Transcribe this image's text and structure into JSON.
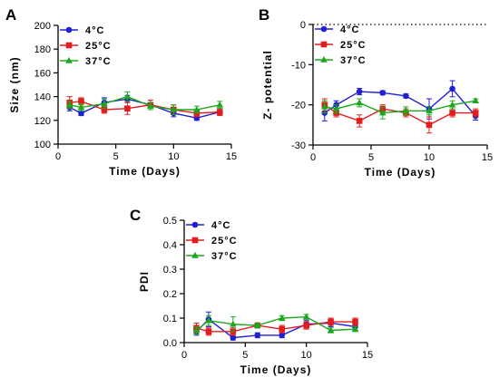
{
  "chart_data": [
    {
      "panel": "A",
      "type": "line",
      "xlabel": "Time (Days)",
      "ylabel": "Size (nm)",
      "xlim": [
        0,
        15
      ],
      "ylim": [
        100,
        200
      ],
      "xticks": [
        0,
        5,
        10,
        15
      ],
      "yticks": [
        100,
        120,
        140,
        160,
        180,
        200
      ],
      "legend": "top-left",
      "series": [
        {
          "name": "4°C",
          "color": "#1f1fd6",
          "marker": "circle",
          "x": [
            1,
            2,
            4,
            6,
            8,
            10,
            12,
            14
          ],
          "y": [
            131,
            126,
            135,
            138,
            133,
            126,
            122,
            127
          ],
          "err": [
            3,
            2,
            4,
            3,
            2,
            3,
            2,
            2
          ]
        },
        {
          "name": "25°C",
          "color": "#e31c1c",
          "marker": "square",
          "x": [
            1,
            2,
            4,
            6,
            8,
            10,
            12,
            14
          ],
          "y": [
            135,
            136,
            129,
            130,
            133,
            129,
            126,
            127
          ],
          "err": [
            5,
            3,
            3,
            5,
            4,
            4,
            3,
            3
          ]
        },
        {
          "name": "37°C",
          "color": "#1ca81c",
          "marker": "triangle",
          "x": [
            1,
            2,
            4,
            6,
            8,
            10,
            12,
            14
          ],
          "y": [
            133,
            131,
            134,
            140,
            132,
            129,
            129,
            133
          ],
          "err": [
            3,
            3,
            4,
            4,
            3,
            4,
            3,
            3
          ]
        }
      ]
    },
    {
      "panel": "B",
      "type": "line",
      "xlabel": "Time (Days)",
      "ylabel": "Z- potential",
      "xlim": [
        0,
        15
      ],
      "ylim": [
        -30,
        0
      ],
      "xticks": [
        0,
        5,
        10,
        15
      ],
      "yticks": [
        -30,
        -20,
        -10,
        0
      ],
      "zero_line": "dotted",
      "legend": "top-left",
      "series": [
        {
          "name": "4°C",
          "color": "#1f1fd6",
          "marker": "circle",
          "x": [
            1,
            2,
            4,
            6,
            8,
            10,
            12,
            14
          ],
          "y": [
            -22,
            -20,
            -16.7,
            -17,
            -17.8,
            -21,
            -16,
            -22.8
          ],
          "err": [
            2,
            1,
            0.8,
            0.5,
            0.5,
            2.5,
            2,
            1
          ]
        },
        {
          "name": "25°C",
          "color": "#e31c1c",
          "marker": "square",
          "x": [
            1,
            2,
            4,
            6,
            8,
            10,
            12,
            14
          ],
          "y": [
            -20,
            -22,
            -24,
            -21,
            -22,
            -25,
            -22,
            -22
          ],
          "err": [
            1.5,
            1,
            1.5,
            1,
            1,
            2,
            1,
            1
          ]
        },
        {
          "name": "37°C",
          "color": "#1ca81c",
          "marker": "triangle",
          "x": [
            1,
            2,
            4,
            6,
            8,
            10,
            12,
            14
          ],
          "y": [
            -20.5,
            -21,
            -19.5,
            -22,
            -21.5,
            -21.5,
            -20,
            -19
          ],
          "err": [
            1.5,
            1,
            1,
            1.5,
            1,
            1,
            1,
            0.5
          ]
        }
      ]
    },
    {
      "panel": "C",
      "type": "line",
      "xlabel": "Time (Days)",
      "ylabel": "PDI",
      "xlim": [
        0,
        15
      ],
      "ylim": [
        0,
        0.5
      ],
      "xticks": [
        0,
        5,
        10,
        15
      ],
      "yticks": [
        0.0,
        0.1,
        0.2,
        0.3,
        0.4,
        0.5
      ],
      "legend": "top-left",
      "series": [
        {
          "name": "4°C",
          "color": "#1f1fd6",
          "marker": "circle",
          "x": [
            1,
            2,
            4,
            6,
            8,
            10,
            12,
            14
          ],
          "y": [
            0.045,
            0.095,
            0.02,
            0.03,
            0.03,
            0.075,
            0.08,
            0.065
          ],
          "err": [
            0.015,
            0.03,
            0.01,
            0.01,
            0.01,
            0.015,
            0.015,
            0.015
          ]
        },
        {
          "name": "25°C",
          "color": "#e31c1c",
          "marker": "square",
          "x": [
            1,
            2,
            4,
            6,
            8,
            10,
            12,
            14
          ],
          "y": [
            0.06,
            0.045,
            0.045,
            0.07,
            0.055,
            0.07,
            0.085,
            0.085
          ],
          "err": [
            0.02,
            0.015,
            0.015,
            0.01,
            0.015,
            0.015,
            0.015,
            0.015
          ]
        },
        {
          "name": "37°C",
          "color": "#1ca81c",
          "marker": "triangle",
          "x": [
            1,
            2,
            4,
            6,
            8,
            10,
            12,
            14
          ],
          "y": [
            0.05,
            0.09,
            0.075,
            0.07,
            0.1,
            0.105,
            0.05,
            0.055
          ],
          "err": [
            0.015,
            0.02,
            0.03,
            0.01,
            0.01,
            0.01,
            0.01,
            0.01
          ]
        }
      ]
    }
  ]
}
